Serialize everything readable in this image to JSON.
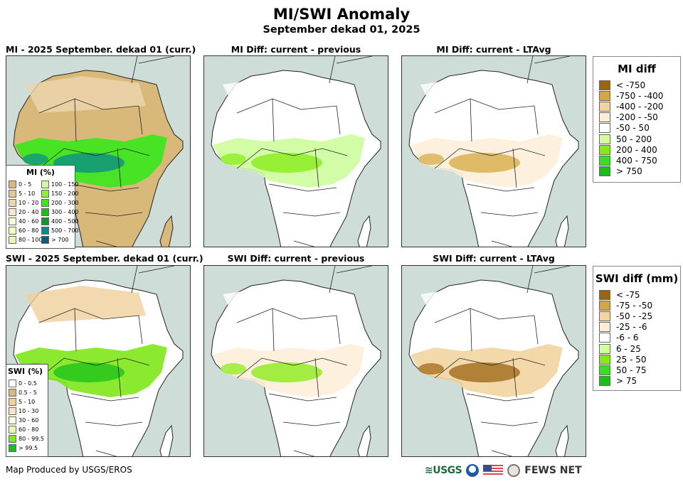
{
  "header": {
    "title": "MI/SWI Anomaly",
    "subtitle": "September dekad 01, 2025"
  },
  "panels": [
    {
      "id": "mi-current",
      "title": "MI - 2025 September. dekad 01 (curr.)",
      "variant": "mi-current"
    },
    {
      "id": "mi-diff-previous",
      "title": "MI Diff: current - previous",
      "variant": "mi-diff-prev"
    },
    {
      "id": "mi-diff-ltavg",
      "title": "MI Diff: current - LTAvg",
      "variant": "mi-diff-lta"
    },
    {
      "id": "swi-current",
      "title": "SWI - 2025 September. dekad 01 (curr.)",
      "variant": "swi-current"
    },
    {
      "id": "swi-diff-previous",
      "title": "SWI Diff: current - previous",
      "variant": "swi-diff-prev"
    },
    {
      "id": "swi-diff-ltavg",
      "title": "SWI Diff: current - LTAvg",
      "variant": "swi-diff-lta"
    }
  ],
  "legends": {
    "mi_percent": {
      "title": "MI (%)",
      "items": [
        {
          "label": "0 - 5",
          "color": "#d9b97a"
        },
        {
          "label": "5 - 10",
          "color": "#e3c894"
        },
        {
          "label": "10 - 20",
          "color": "#ecd6b0"
        },
        {
          "label": "20 - 40",
          "color": "#f5e6cc"
        },
        {
          "label": "40 - 60",
          "color": "#fefedc"
        },
        {
          "label": "60 - 80",
          "color": "#f2fcc4"
        },
        {
          "label": "80 - 100",
          "color": "#e4fbb8"
        },
        {
          "label": "100 - 150",
          "color": "#cdfc9c"
        },
        {
          "label": "150 - 200",
          "color": "#90f028"
        },
        {
          "label": "200 - 300",
          "color": "#38e81c"
        },
        {
          "label": "300 - 400",
          "color": "#18c010"
        },
        {
          "label": "400 - 500",
          "color": "#0a9a2a"
        },
        {
          "label": "500 - 700",
          "color": "#0a8a8a"
        },
        {
          "label": "> 700",
          "color": "#0a5a7a"
        }
      ]
    },
    "swi_percent": {
      "title": "SWI (%)",
      "items": [
        {
          "label": "0 - 0.5",
          "color": "#ffffff"
        },
        {
          "label": "0.5 - 5",
          "color": "#d9b97a"
        },
        {
          "label": "5 - 10",
          "color": "#f0d09c"
        },
        {
          "label": "10 - 30",
          "color": "#fbe3c4"
        },
        {
          "label": "30 - 60",
          "color": "#fefedc"
        },
        {
          "label": "60 - 80",
          "color": "#e6fcb0"
        },
        {
          "label": "80 - 99.5",
          "color": "#7ee81a"
        },
        {
          "label": "> 99.5",
          "color": "#18c018"
        }
      ]
    },
    "mi_diff": {
      "title": "MI diff",
      "items": [
        {
          "label": "< -750",
          "color": "#9a6410"
        },
        {
          "label": "-750 - -400",
          "color": "#d4a840"
        },
        {
          "label": "-400 - -200",
          "color": "#f2d4a0"
        },
        {
          "label": "-200 - -50",
          "color": "#fdeed8"
        },
        {
          "label": "-50 - 50",
          "color": "#ffffff"
        },
        {
          "label": "50 - 200",
          "color": "#d6fca0"
        },
        {
          "label": "200 - 400",
          "color": "#84ec10"
        },
        {
          "label": "400 - 750",
          "color": "#38e020"
        },
        {
          "label": "> 750",
          "color": "#18c018"
        }
      ]
    },
    "swi_diff": {
      "title": "SWI diff (mm)",
      "items": [
        {
          "label": "< -75",
          "color": "#9a6410"
        },
        {
          "label": "-75 - -50",
          "color": "#d4a840"
        },
        {
          "label": "-50 - -25",
          "color": "#f2d4a0"
        },
        {
          "label": "-25 - -6",
          "color": "#fdeed8"
        },
        {
          "label": "-6 - 6",
          "color": "#ffffff"
        },
        {
          "label": "6 - 25",
          "color": "#d6fca0"
        },
        {
          "label": "25 - 50",
          "color": "#84ec10"
        },
        {
          "label": "50 - 75",
          "color": "#38e020"
        },
        {
          "label": "> 75",
          "color": "#18c018"
        }
      ]
    }
  },
  "footer": {
    "credit": "Map Produced by USGS/EROS",
    "logos": [
      "USGS",
      "NOAA",
      "US flag",
      "State Department seal",
      "FEWS NET"
    ],
    "usgs_label": "≋USGS",
    "fews_label": "FEWS NET"
  },
  "colors": {
    "ocean": "#cfddd8",
    "border": "#222222"
  }
}
